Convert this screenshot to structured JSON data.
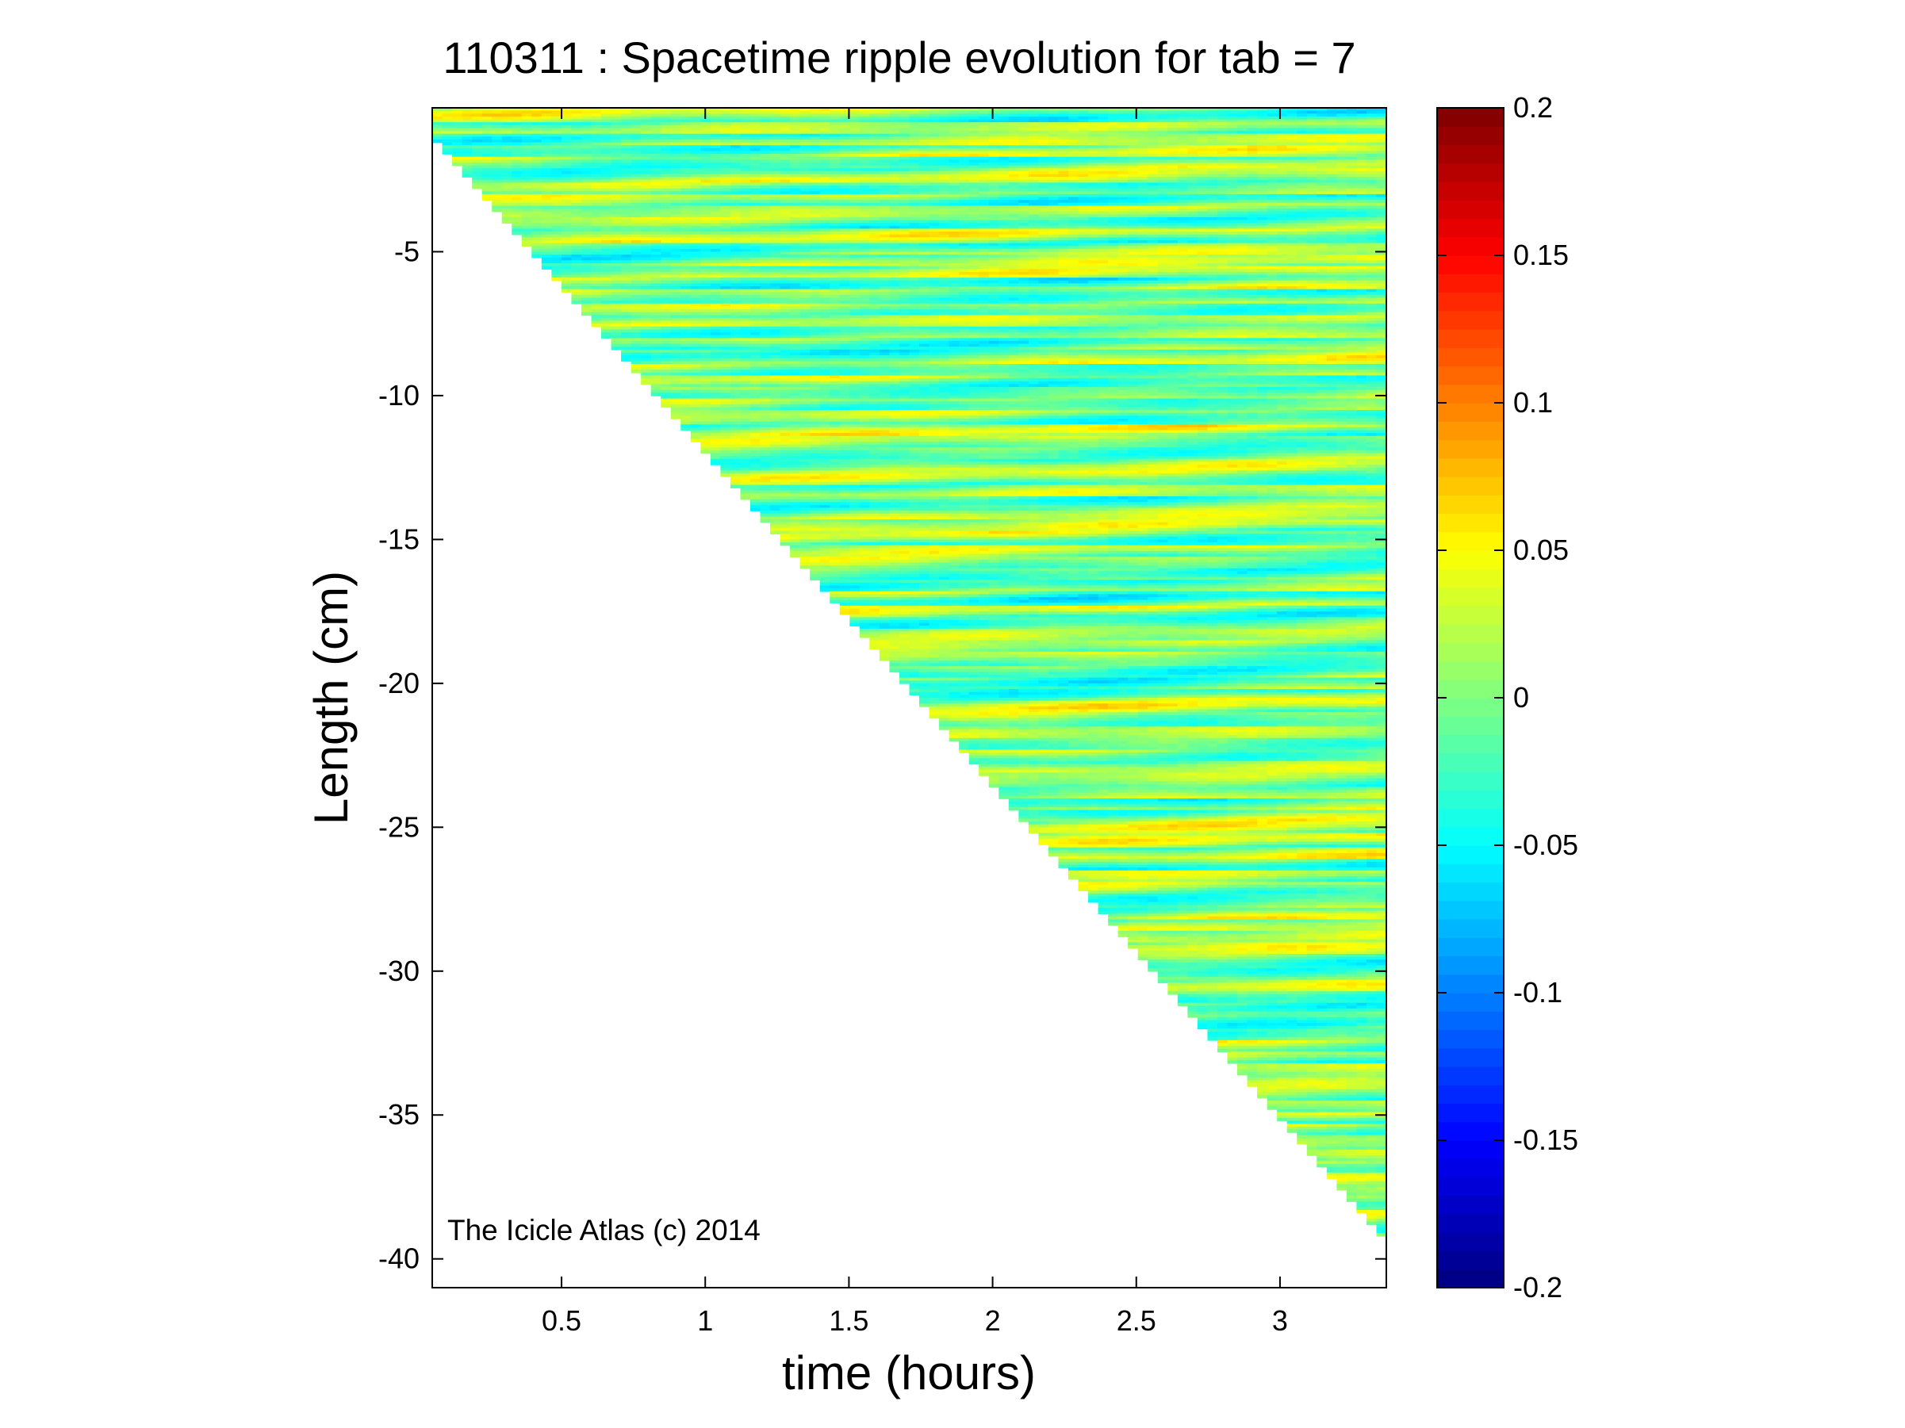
{
  "chart_data": {
    "type": "heatmap",
    "title": "110311 : Spacetime ripple evolution for tab = 7",
    "xlabel": "time (hours)",
    "ylabel": "Length (cm)",
    "xlim": [
      0.05,
      3.37
    ],
    "ylim": [
      -41,
      0
    ],
    "xticks": [
      0.5,
      1,
      1.5,
      2,
      2.5,
      3
    ],
    "xtick_labels": [
      "0.5",
      "1",
      "1.5",
      "2",
      "2.5",
      "3"
    ],
    "yticks": [
      -5,
      -10,
      -15,
      -20,
      -25,
      -30,
      -35,
      -40
    ],
    "ytick_labels": [
      "-5",
      "-10",
      "-15",
      "-20",
      "-25",
      "-30",
      "-35",
      "-40"
    ],
    "colorbar": {
      "colormap": "jet",
      "clim": [
        -0.2,
        0.2
      ],
      "ticks": [
        0.2,
        0.15,
        0.1,
        0.05,
        0,
        -0.05,
        -0.1,
        -0.15,
        -0.2
      ],
      "tick_labels": [
        "0.2",
        "0.15",
        "0.1",
        "0.05",
        "0",
        "-0.05",
        "-0.1",
        "-0.15",
        "-0.2"
      ]
    },
    "icicle_tip_front": [
      [
        0.05,
        -1.2
      ],
      [
        3.37,
        -39.5
      ]
    ],
    "grid": false,
    "annotation": "The Icicle Atlas (c) 2014"
  }
}
